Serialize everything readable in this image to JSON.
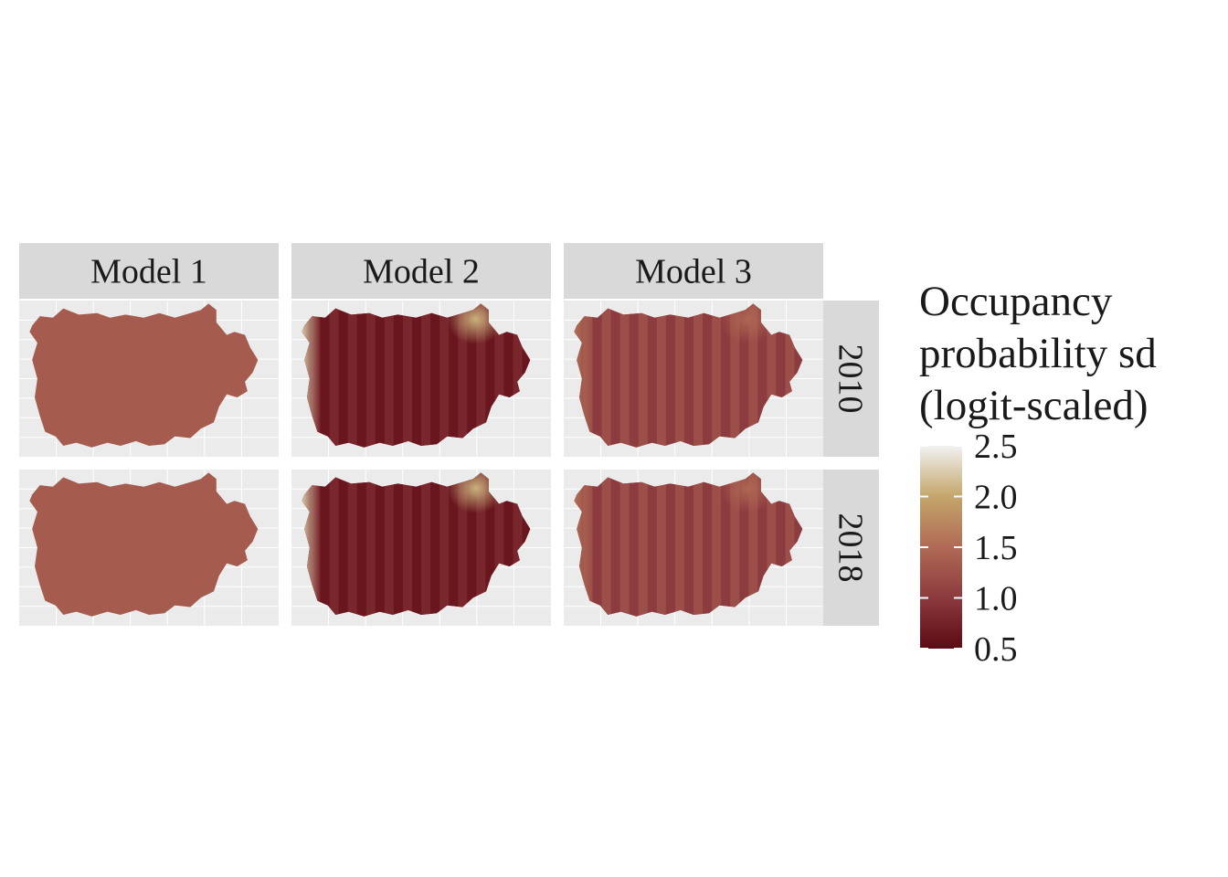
{
  "chart_data": {
    "type": "heatmap",
    "facet_columns": [
      "Model 1",
      "Model 2",
      "Model 3"
    ],
    "facet_rows": [
      "2010",
      "2018"
    ],
    "legend": {
      "title_lines": [
        "Occupancy",
        "probability  sd",
        "(logit-scaled)"
      ],
      "ticks": [
        "2.5",
        "2.0",
        "1.5",
        "1.0",
        "0.5"
      ],
      "range": [
        0.5,
        2.5
      ],
      "colors": [
        "#5c0a14",
        "#8c3a3e",
        "#b06a55",
        "#c4a66a",
        "#f2f2f2"
      ],
      "placement": "right"
    },
    "panels": [
      {
        "model": "Model 1",
        "year": "2010",
        "base": 1.35,
        "west_edge": 0,
        "northeast_patch": 0,
        "stripes": 0
      },
      {
        "model": "Model 2",
        "year": "2010",
        "base": 0.72,
        "west_edge": 1.5,
        "northeast_patch": 1.35,
        "stripes": 0.18
      },
      {
        "model": "Model 3",
        "year": "2010",
        "base": 1.12,
        "west_edge": 0.45,
        "northeast_patch": 0.35,
        "stripes": 0.22
      },
      {
        "model": "Model 1",
        "year": "2018",
        "base": 1.35,
        "west_edge": 0,
        "northeast_patch": 0,
        "stripes": 0
      },
      {
        "model": "Model 2",
        "year": "2018",
        "base": 0.72,
        "west_edge": 1.5,
        "northeast_patch": 1.35,
        "stripes": 0.18
      },
      {
        "model": "Model 3",
        "year": "2018",
        "base": 1.12,
        "west_edge": 0.45,
        "northeast_patch": 0.35,
        "stripes": 0.22
      }
    ],
    "panel_background": "#ebebeb",
    "grid_color": "#ffffff",
    "strip_background": "#d9d9d9"
  }
}
